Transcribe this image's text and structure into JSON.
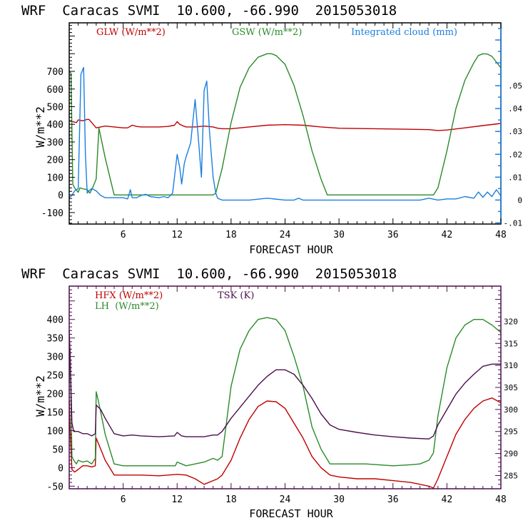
{
  "chart_data": [
    {
      "type": "line",
      "title": "WRF  Caracas SVMI  10.600, -66.990  2015053018",
      "xlabel": "FORECAST HOUR",
      "ylabel": "W/m**2",
      "xlim": [
        0,
        48
      ],
      "ylim": [
        -165,
        975
      ],
      "y2lim": [
        -0.0105,
        0.0775
      ],
      "xticks": [
        "6",
        "12",
        "18",
        "24",
        "30",
        "36",
        "42",
        "48"
      ],
      "yticks": [
        "-100",
        "0",
        "100",
        "200",
        "300",
        "400",
        "500",
        "600",
        "700"
      ],
      "y2ticks": [
        "-.01",
        "0",
        ".01",
        ".02",
        ".03",
        ".04",
        ".05"
      ],
      "grid": false,
      "legend": [
        {
          "label": "GLW (W/m**2)",
          "color": "#c00000",
          "position": "top-left"
        },
        {
          "label": "GSW (W/m**2)",
          "color": "#2a8a2a",
          "position": "top-center"
        },
        {
          "label": "Integrated cloud (mm)",
          "color": "#1a7fe0",
          "position": "top-right"
        }
      ],
      "frame_color_left": "#000000",
      "frame_color_right": "#1a7fe0",
      "series": [
        {
          "name": "GLW",
          "axis": "left",
          "color": "#c00000",
          "x": [
            0,
            0.8,
            1,
            1.5,
            2,
            2.2,
            2.5,
            3,
            3.5,
            4,
            5,
            6,
            6.5,
            7,
            7.5,
            8,
            9,
            10,
            11,
            11.7,
            12,
            12.3,
            12.7,
            13,
            14,
            15,
            16,
            16.5,
            17,
            18,
            20,
            22,
            24,
            26,
            28,
            30,
            34,
            38,
            40,
            41,
            42,
            44,
            46,
            48
          ],
          "y": [
            420,
            410,
            425,
            420,
            428,
            428,
            410,
            380,
            385,
            390,
            385,
            380,
            380,
            395,
            388,
            385,
            385,
            385,
            388,
            395,
            415,
            400,
            390,
            385,
            385,
            390,
            385,
            378,
            375,
            375,
            385,
            395,
            398,
            395,
            385,
            378,
            375,
            372,
            370,
            365,
            368,
            380,
            393,
            405
          ]
        },
        {
          "name": "GSW",
          "axis": "left",
          "color": "#2a8a2a",
          "x": [
            0,
            0.2,
            0.4,
            0.6,
            1,
            1.2,
            1.5,
            2,
            2.3,
            2.6,
            3,
            3.3,
            4,
            5,
            6,
            10,
            14,
            16,
            16.3,
            17,
            18,
            19,
            20,
            21,
            22,
            22.5,
            23,
            24,
            25,
            26,
            27,
            28,
            28.7,
            30,
            36,
            40,
            40.5,
            41,
            42,
            43,
            44,
            45,
            45.5,
            46,
            46.5,
            47,
            48
          ],
          "y": [
            700,
            690,
            60,
            40,
            15,
            40,
            35,
            30,
            10,
            40,
            90,
            380,
            210,
            0,
            0,
            0,
            0,
            0,
            10,
            150,
            410,
            610,
            720,
            780,
            800,
            800,
            790,
            740,
            620,
            450,
            250,
            90,
            0,
            0,
            0,
            0,
            0,
            40,
            250,
            490,
            650,
            750,
            790,
            800,
            798,
            785,
            720
          ]
        },
        {
          "name": "Integrated cloud",
          "axis": "right",
          "color": "#1a7fe0",
          "x": [
            0,
            0.3,
            0.6,
            1,
            1.3,
            1.6,
            1.8,
            2,
            2.2,
            2.5,
            3,
            3.5,
            4,
            5,
            6,
            6.5,
            6.8,
            7,
            7.5,
            8,
            8.5,
            9,
            10,
            10.5,
            11,
            11.5,
            12,
            12.3,
            12.5,
            12.8,
            13,
            13.5,
            14,
            14.3,
            14.7,
            15,
            15.3,
            15.6,
            16,
            16.3,
            16.5,
            17,
            18,
            18.5,
            19,
            20,
            22,
            24,
            25,
            25.5,
            26,
            28,
            30,
            35,
            39,
            40,
            41,
            42,
            43,
            44,
            45,
            45.5,
            46,
            46.5,
            47,
            47.5,
            48
          ],
          "y": [
            0.001,
            0.002,
            0.004,
            0.005,
            0.055,
            0.058,
            0.02,
            0.003,
            0.004,
            0.005,
            0.004,
            0.002,
            0.001,
            0.001,
            0.001,
            0.0005,
            0.0045,
            0.001,
            0.001,
            0.002,
            0.0025,
            0.0015,
            0.001,
            0.0015,
            0.001,
            0.003,
            0.02,
            0.014,
            0.007,
            0.016,
            0.019,
            0.025,
            0.044,
            0.03,
            0.01,
            0.048,
            0.052,
            0.03,
            0.01,
            0.003,
            0.0008,
            0,
            0,
            0,
            0,
            0,
            0.0008,
            0,
            0,
            0.0008,
            0,
            0,
            0,
            0,
            0,
            0.0008,
            0,
            0.0005,
            0.0005,
            0.0015,
            0.0008,
            0.0035,
            0.0012,
            0.0035,
            0.0015,
            0.0045,
            0.0018
          ]
        }
      ]
    },
    {
      "type": "line",
      "title": "WRF  Caracas SVMI  10.600, -66.990  2015053018",
      "xlabel": "FORECAST HOUR",
      "ylabel": "W/m**2",
      "xlim": [
        0,
        48
      ],
      "ylim": [
        -57,
        490
      ],
      "y2lim": [
        282,
        328
      ],
      "xticks": [
        "6",
        "12",
        "18",
        "24",
        "30",
        "36",
        "42",
        "48"
      ],
      "yticks": [
        "-50",
        "0",
        "50",
        "100",
        "150",
        "200",
        "250",
        "300",
        "350",
        "400"
      ],
      "y2ticks": [
        "285",
        "290",
        "295",
        "300",
        "305",
        "310",
        "315",
        "320"
      ],
      "grid": false,
      "legend": [
        {
          "label": "HFX (W/m**2)",
          "color": "#c00000",
          "position": "top-left"
        },
        {
          "label": "LH  (W/m**2)",
          "color": "#2a8a2a",
          "position": "top-left"
        },
        {
          "label": "TSK (K)",
          "color": "#4b0f4b",
          "position": "top-center"
        }
      ],
      "frame_color_left": "#4b0f4b",
      "frame_color_right": "#4b0f4b",
      "series": [
        {
          "name": "HFX",
          "axis": "left",
          "color": "#c00000",
          "x": [
            0,
            0.1,
            0.3,
            0.6,
            1,
            1.5,
            2,
            2.5,
            2.9,
            3,
            3.5,
            4,
            5,
            6,
            8,
            10,
            11,
            12,
            13,
            14,
            15,
            16,
            16.5,
            17,
            18,
            19,
            20,
            21,
            22,
            23,
            24,
            25,
            26,
            27,
            28,
            29,
            30,
            32,
            34,
            36,
            38,
            39,
            40,
            40.5,
            41,
            42,
            43,
            44,
            45,
            46,
            47,
            48
          ],
          "y": [
            180,
            100,
            -5,
            -12,
            -5,
            5,
            5,
            2,
            5,
            80,
            50,
            20,
            -20,
            -20,
            -20,
            -22,
            -20,
            -18,
            -20,
            -30,
            -45,
            -35,
            -30,
            -20,
            20,
            80,
            130,
            165,
            180,
            178,
            160,
            120,
            80,
            30,
            0,
            -20,
            -25,
            -30,
            -30,
            -35,
            -40,
            -45,
            -50,
            -55,
            -30,
            30,
            90,
            130,
            160,
            180,
            188,
            175
          ]
        },
        {
          "name": "LH",
          "axis": "left",
          "color": "#2a8a2a",
          "x": [
            0,
            0.1,
            0.3,
            0.5,
            0.8,
            1,
            1.5,
            2,
            2.5,
            2.9,
            3,
            3.2,
            3.5,
            4,
            5,
            6,
            8,
            10,
            11.8,
            12,
            12.5,
            13,
            14,
            15,
            16,
            16.5,
            17,
            18,
            19,
            20,
            21,
            22,
            23,
            24,
            25,
            26,
            27,
            28,
            29,
            30,
            33,
            36,
            38,
            39,
            40,
            40.5,
            41,
            42,
            43,
            44,
            45,
            46,
            47,
            48
          ],
          "y": [
            230,
            320,
            30,
            20,
            10,
            20,
            15,
            18,
            10,
            25,
            205,
            185,
            150,
            90,
            10,
            5,
            5,
            5,
            5,
            15,
            10,
            5,
            10,
            15,
            25,
            20,
            30,
            220,
            320,
            370,
            400,
            405,
            400,
            370,
            300,
            220,
            110,
            50,
            10,
            10,
            10,
            5,
            8,
            10,
            20,
            40,
            140,
            270,
            350,
            385,
            400,
            400,
            385,
            365
          ]
        },
        {
          "name": "TSK",
          "axis": "right",
          "color": "#4b0f4b",
          "x": [
            0,
            0.1,
            0.3,
            0.5,
            1,
            1.5,
            2,
            2.5,
            2.9,
            3,
            3.5,
            4,
            5,
            6,
            7,
            8,
            10,
            11.7,
            12,
            12.5,
            13,
            14,
            15,
            16,
            16.5,
            17,
            18,
            19,
            20,
            21,
            22,
            23,
            24,
            25,
            26,
            27,
            28,
            29,
            30,
            32,
            34,
            36,
            38,
            40,
            40.5,
            41,
            42,
            43,
            44,
            45,
            46,
            47,
            48
          ],
          "y": [
            318,
            312,
            297,
            295,
            295,
            294.5,
            294.5,
            294,
            294.5,
            301,
            300,
            298,
            294.5,
            294,
            294.2,
            294,
            293.8,
            294,
            294.8,
            294,
            293.8,
            293.8,
            293.8,
            294.2,
            294.2,
            295,
            298,
            300.5,
            303,
            305.5,
            307.5,
            309,
            309,
            308,
            305.5,
            302.5,
            299,
            296.5,
            295.5,
            294.8,
            294.2,
            293.8,
            293.5,
            293.3,
            294,
            296.5,
            300,
            303.5,
            306,
            308,
            309.8,
            310.3,
            310.3
          ]
        }
      ]
    }
  ]
}
